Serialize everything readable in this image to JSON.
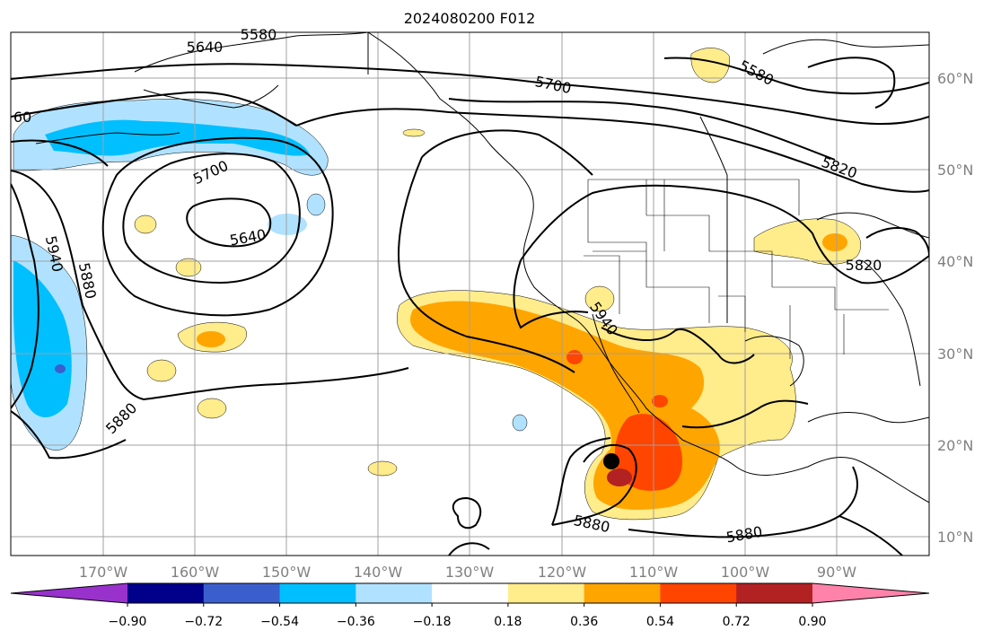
{
  "title": "2024080200 F012",
  "map": {
    "lat_labels": [
      "60°N",
      "50°N",
      "40°N",
      "30°N",
      "20°N",
      "10°N"
    ],
    "lon_labels": [
      "170°W",
      "160°W",
      "150°W",
      "140°W",
      "130°W",
      "120°W",
      "110°W",
      "100°W",
      "90°W"
    ],
    "contour_labels": [
      "5640",
      "5580",
      "5700",
      "5580",
      "5820",
      "5700",
      "5640",
      "5940",
      "5880",
      "5880",
      "5940",
      "5820",
      "5880",
      "5880",
      "60"
    ],
    "storm_marker": {
      "lat": 18.1,
      "lon": -114.5
    }
  },
  "colorbar": {
    "tick_labels": [
      "−0.90",
      "−0.72",
      "−0.54",
      "−0.36",
      "−0.18",
      "0.18",
      "0.36",
      "0.54",
      "0.72",
      "0.90"
    ],
    "colors": [
      "#9932cc",
      "#00008b",
      "#3a5fcd",
      "#00bfff",
      "#b0e2ff",
      "#ffffff",
      "#ffec8b",
      "#ffa500",
      "#ff4500",
      "#b22222",
      "#ff82ab"
    ]
  },
  "colors": {
    "light_yellow": "#ffec8b",
    "orange": "#ffa500",
    "red_orange": "#ff4500",
    "dark_red": "#b22222",
    "light_blue": "#b0e2ff",
    "sky_blue": "#00bfff",
    "royal_blue": "#3a5fcd"
  }
}
